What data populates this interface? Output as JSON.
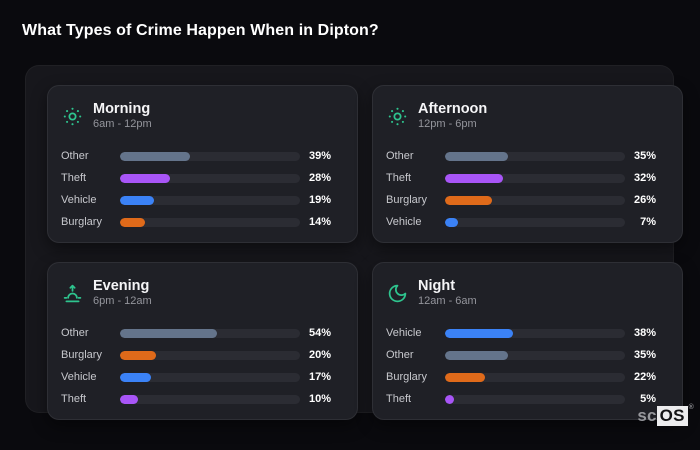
{
  "page_title": "What Types of Crime Happen When in Dipton?",
  "brand": {
    "prefix": "sc",
    "highlight": "OS",
    "registered": "®"
  },
  "colors": {
    "accent_teal": "#2ec48e",
    "category_other": "#64748b",
    "category_theft": "#a855f7",
    "category_vehicle": "#3b82f6",
    "category_burglary": "#df6a1a",
    "card_background": "#1f2026",
    "track_background": "#2b2c33"
  },
  "panels": [
    {
      "id": "morning",
      "icon": "sun-icon",
      "title": "Morning",
      "time_range": "6am - 12pm",
      "rows": [
        {
          "label": "Other",
          "value": 39,
          "display": "39%",
          "color": "#64748b"
        },
        {
          "label": "Theft",
          "value": 28,
          "display": "28%",
          "color": "#a855f7"
        },
        {
          "label": "Vehicle",
          "value": 19,
          "display": "19%",
          "color": "#3b82f6"
        },
        {
          "label": "Burglary",
          "value": 14,
          "display": "14%",
          "color": "#df6a1a"
        }
      ]
    },
    {
      "id": "afternoon",
      "icon": "sun-icon",
      "title": "Afternoon",
      "time_range": "12pm - 6pm",
      "rows": [
        {
          "label": "Other",
          "value": 35,
          "display": "35%",
          "color": "#64748b"
        },
        {
          "label": "Theft",
          "value": 32,
          "display": "32%",
          "color": "#a855f7"
        },
        {
          "label": "Burglary",
          "value": 26,
          "display": "26%",
          "color": "#df6a1a"
        },
        {
          "label": "Vehicle",
          "value": 7,
          "display": "7%",
          "color": "#3b82f6"
        }
      ]
    },
    {
      "id": "evening",
      "icon": "sunrise-icon",
      "title": "Evening",
      "time_range": "6pm - 12am",
      "rows": [
        {
          "label": "Other",
          "value": 54,
          "display": "54%",
          "color": "#64748b"
        },
        {
          "label": "Burglary",
          "value": 20,
          "display": "20%",
          "color": "#df6a1a"
        },
        {
          "label": "Vehicle",
          "value": 17,
          "display": "17%",
          "color": "#3b82f6"
        },
        {
          "label": "Theft",
          "value": 10,
          "display": "10%",
          "color": "#a855f7"
        }
      ]
    },
    {
      "id": "night",
      "icon": "moon-icon",
      "title": "Night",
      "time_range": "12am - 6am",
      "rows": [
        {
          "label": "Vehicle",
          "value": 38,
          "display": "38%",
          "color": "#3b82f6"
        },
        {
          "label": "Other",
          "value": 35,
          "display": "35%",
          "color": "#64748b"
        },
        {
          "label": "Burglary",
          "value": 22,
          "display": "22%",
          "color": "#df6a1a"
        },
        {
          "label": "Theft",
          "value": 5,
          "display": "5%",
          "color": "#a855f7"
        }
      ]
    }
  ],
  "chart_data": [
    {
      "type": "bar",
      "orientation": "horizontal",
      "title": "Morning",
      "subtitle": "6am - 12pm",
      "categories": [
        "Other",
        "Theft",
        "Vehicle",
        "Burglary"
      ],
      "values": [
        39,
        28,
        19,
        14
      ],
      "unit": "%",
      "xlim": [
        0,
        100
      ],
      "grid": false,
      "legend": false
    },
    {
      "type": "bar",
      "orientation": "horizontal",
      "title": "Afternoon",
      "subtitle": "12pm - 6pm",
      "categories": [
        "Other",
        "Theft",
        "Burglary",
        "Vehicle"
      ],
      "values": [
        35,
        32,
        26,
        7
      ],
      "unit": "%",
      "xlim": [
        0,
        100
      ],
      "grid": false,
      "legend": false
    },
    {
      "type": "bar",
      "orientation": "horizontal",
      "title": "Evening",
      "subtitle": "6pm - 12am",
      "categories": [
        "Other",
        "Burglary",
        "Vehicle",
        "Theft"
      ],
      "values": [
        54,
        20,
        17,
        10
      ],
      "unit": "%",
      "xlim": [
        0,
        100
      ],
      "grid": false,
      "legend": false
    },
    {
      "type": "bar",
      "orientation": "horizontal",
      "title": "Night",
      "subtitle": "12am - 6am",
      "categories": [
        "Vehicle",
        "Other",
        "Burglary",
        "Theft"
      ],
      "values": [
        38,
        35,
        22,
        5
      ],
      "unit": "%",
      "xlim": [
        0,
        100
      ],
      "grid": false,
      "legend": false
    }
  ]
}
